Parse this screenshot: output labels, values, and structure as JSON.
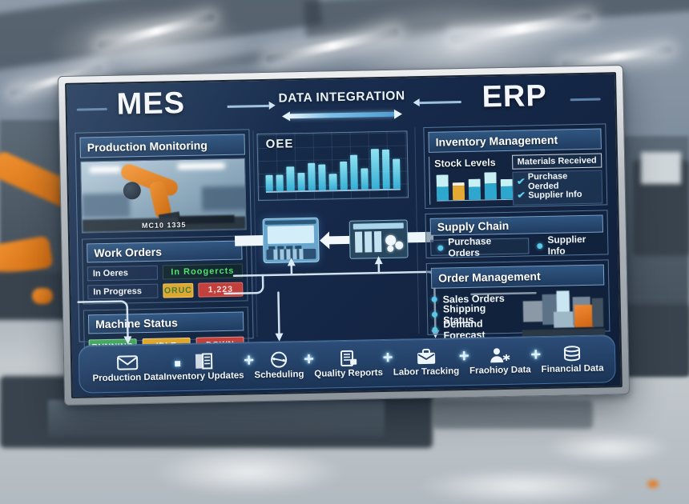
{
  "header": {
    "mes": "MES",
    "center": "DATA INTEGRATION",
    "erp": "ERP"
  },
  "mes_column": {
    "production_monitoring": {
      "title": "Production Monitoring",
      "caption": "MC10 1335"
    },
    "work_orders": {
      "title": "Work Orders",
      "row1_label": "In Oeres",
      "row1_value": "In Roogercts",
      "row2_label": "In Progress",
      "row2_badge1": "ORUC",
      "row2_badge2": "1,223"
    },
    "machine_status": {
      "title": "Machine Status",
      "badges": [
        {
          "label": "RUNNING",
          "color": "#3fa45c"
        },
        {
          "label": "IDLE",
          "color": "#e0a62b"
        },
        {
          "label": "DOWN",
          "color": "#c4403a"
        }
      ]
    }
  },
  "erp_column": {
    "inventory_management": {
      "title": "Inventory Management",
      "materials_received_label": "Materials Received",
      "checklist": [
        {
          "icon": "check-icon",
          "label": "Purchase Oerded"
        },
        {
          "icon": "check-icon",
          "label": "Supplier Info"
        }
      ]
    },
    "supply_chain": {
      "title": "Supply Chain",
      "items": [
        {
          "icon": "bullet-dot",
          "label": "Purchase Orders"
        },
        {
          "icon": "bullet-dot",
          "label": "Supplier Info"
        }
      ]
    },
    "order_management": {
      "title": "Order Management",
      "items": [
        {
          "icon": "bullet-dot",
          "label": "Sales Orders"
        },
        {
          "icon": "bullet-dot",
          "label": "Shipping Status"
        },
        {
          "icon": "bullet-dot",
          "label": "Demand Forecast"
        }
      ]
    }
  },
  "bottom_bar": {
    "connector_glyph": "+",
    "items": [
      {
        "icon": "envelope-icon",
        "label": "Production Data"
      },
      {
        "icon": "clipboard-icon",
        "label": "Inventory Updates"
      },
      {
        "icon": "clock-icon",
        "label": "Scheduling"
      },
      {
        "icon": "report-icon",
        "label": "Quality Reports"
      },
      {
        "icon": "briefcase-icon",
        "label": "Labor Tracking"
      },
      {
        "icon": "person-icon",
        "label": "Fraohioy Data"
      },
      {
        "icon": "database-icon",
        "label": "Financial Data"
      }
    ]
  },
  "colors": {
    "screen_bg": "#16294a",
    "panel_header": "#2f5681",
    "accent_cyan": "#4fc3d9",
    "status_green": "#3fa45c",
    "status_amber": "#e0a62b",
    "status_red": "#c4403a",
    "robot_orange": "#e07820"
  },
  "chart_data": [
    {
      "type": "bar",
      "title": "OEE",
      "values": [
        36,
        36,
        54,
        39,
        60,
        58,
        36,
        62,
        76,
        47,
        90,
        88,
        66
      ],
      "xlabel": "",
      "ylabel": "",
      "ylim": [
        0,
        100
      ],
      "grid": true,
      "bar_color": "#49bdd6",
      "note": "axis tick labels illegible in source"
    },
    {
      "type": "stacked-bar",
      "title": "Stock Levels",
      "bars": [
        {
          "total": 88,
          "top_pct": 45,
          "top_color": "#c6f0f4",
          "bottom_color": "#2ea7cf"
        },
        {
          "total": 62,
          "top_pct": 18,
          "top_color": "#f4efdf",
          "bottom_color": "#e5a832"
        },
        {
          "total": 72,
          "top_pct": 40,
          "top_color": "#c6f0f4",
          "bottom_color": "#2ea7cf"
        },
        {
          "total": 95,
          "top_pct": 42,
          "top_color": "#c6f0f4",
          "bottom_color": "#2ea7cf"
        },
        {
          "total": 70,
          "top_pct": 35,
          "top_color": "#c6f0f4",
          "bottom_color": "#2ea7cf"
        }
      ],
      "ylim": [
        0,
        100
      ]
    }
  ]
}
